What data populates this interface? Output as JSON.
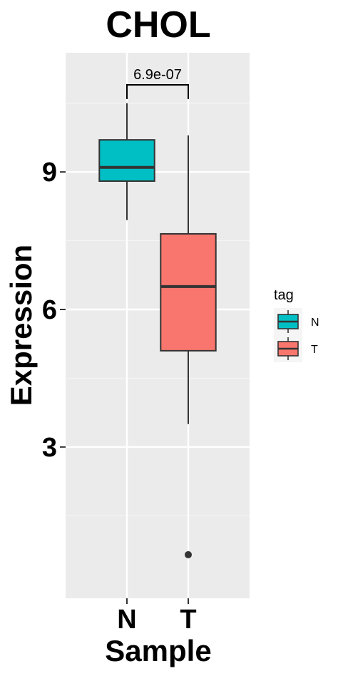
{
  "chart_data": {
    "type": "boxplot",
    "title": "CHOL",
    "xlabel": "Sample",
    "ylabel": "Expression",
    "categories": [
      "N",
      "T"
    ],
    "yticks": [
      3,
      6,
      9
    ],
    "ylim": [
      -0.3,
      11.6
    ],
    "grid": true,
    "boxes": [
      {
        "category": "N",
        "tag": "N",
        "whisker_low": 7.95,
        "q1": 8.8,
        "median": 9.1,
        "q3": 9.7,
        "whisker_high": 10.5,
        "outliers": []
      },
      {
        "category": "T",
        "tag": "T",
        "whisker_low": 3.5,
        "q1": 5.1,
        "median": 6.5,
        "q3": 7.65,
        "whisker_high": 9.8,
        "outliers": [
          0.65
        ]
      }
    ],
    "comparison": {
      "groups": [
        "N",
        "T"
      ],
      "label": "6.9e-07",
      "y": 10.9
    },
    "legend": {
      "title": "tag",
      "position": "right",
      "entries": [
        {
          "label": "N",
          "color": "#00BFC4"
        },
        {
          "label": "T",
          "color": "#F8766D"
        }
      ]
    },
    "colors": {
      "panel_background": "#EBEBEB",
      "grid_major": "#FFFFFF",
      "grid_minor": "#F5F5F5",
      "outline": "#333333"
    }
  }
}
